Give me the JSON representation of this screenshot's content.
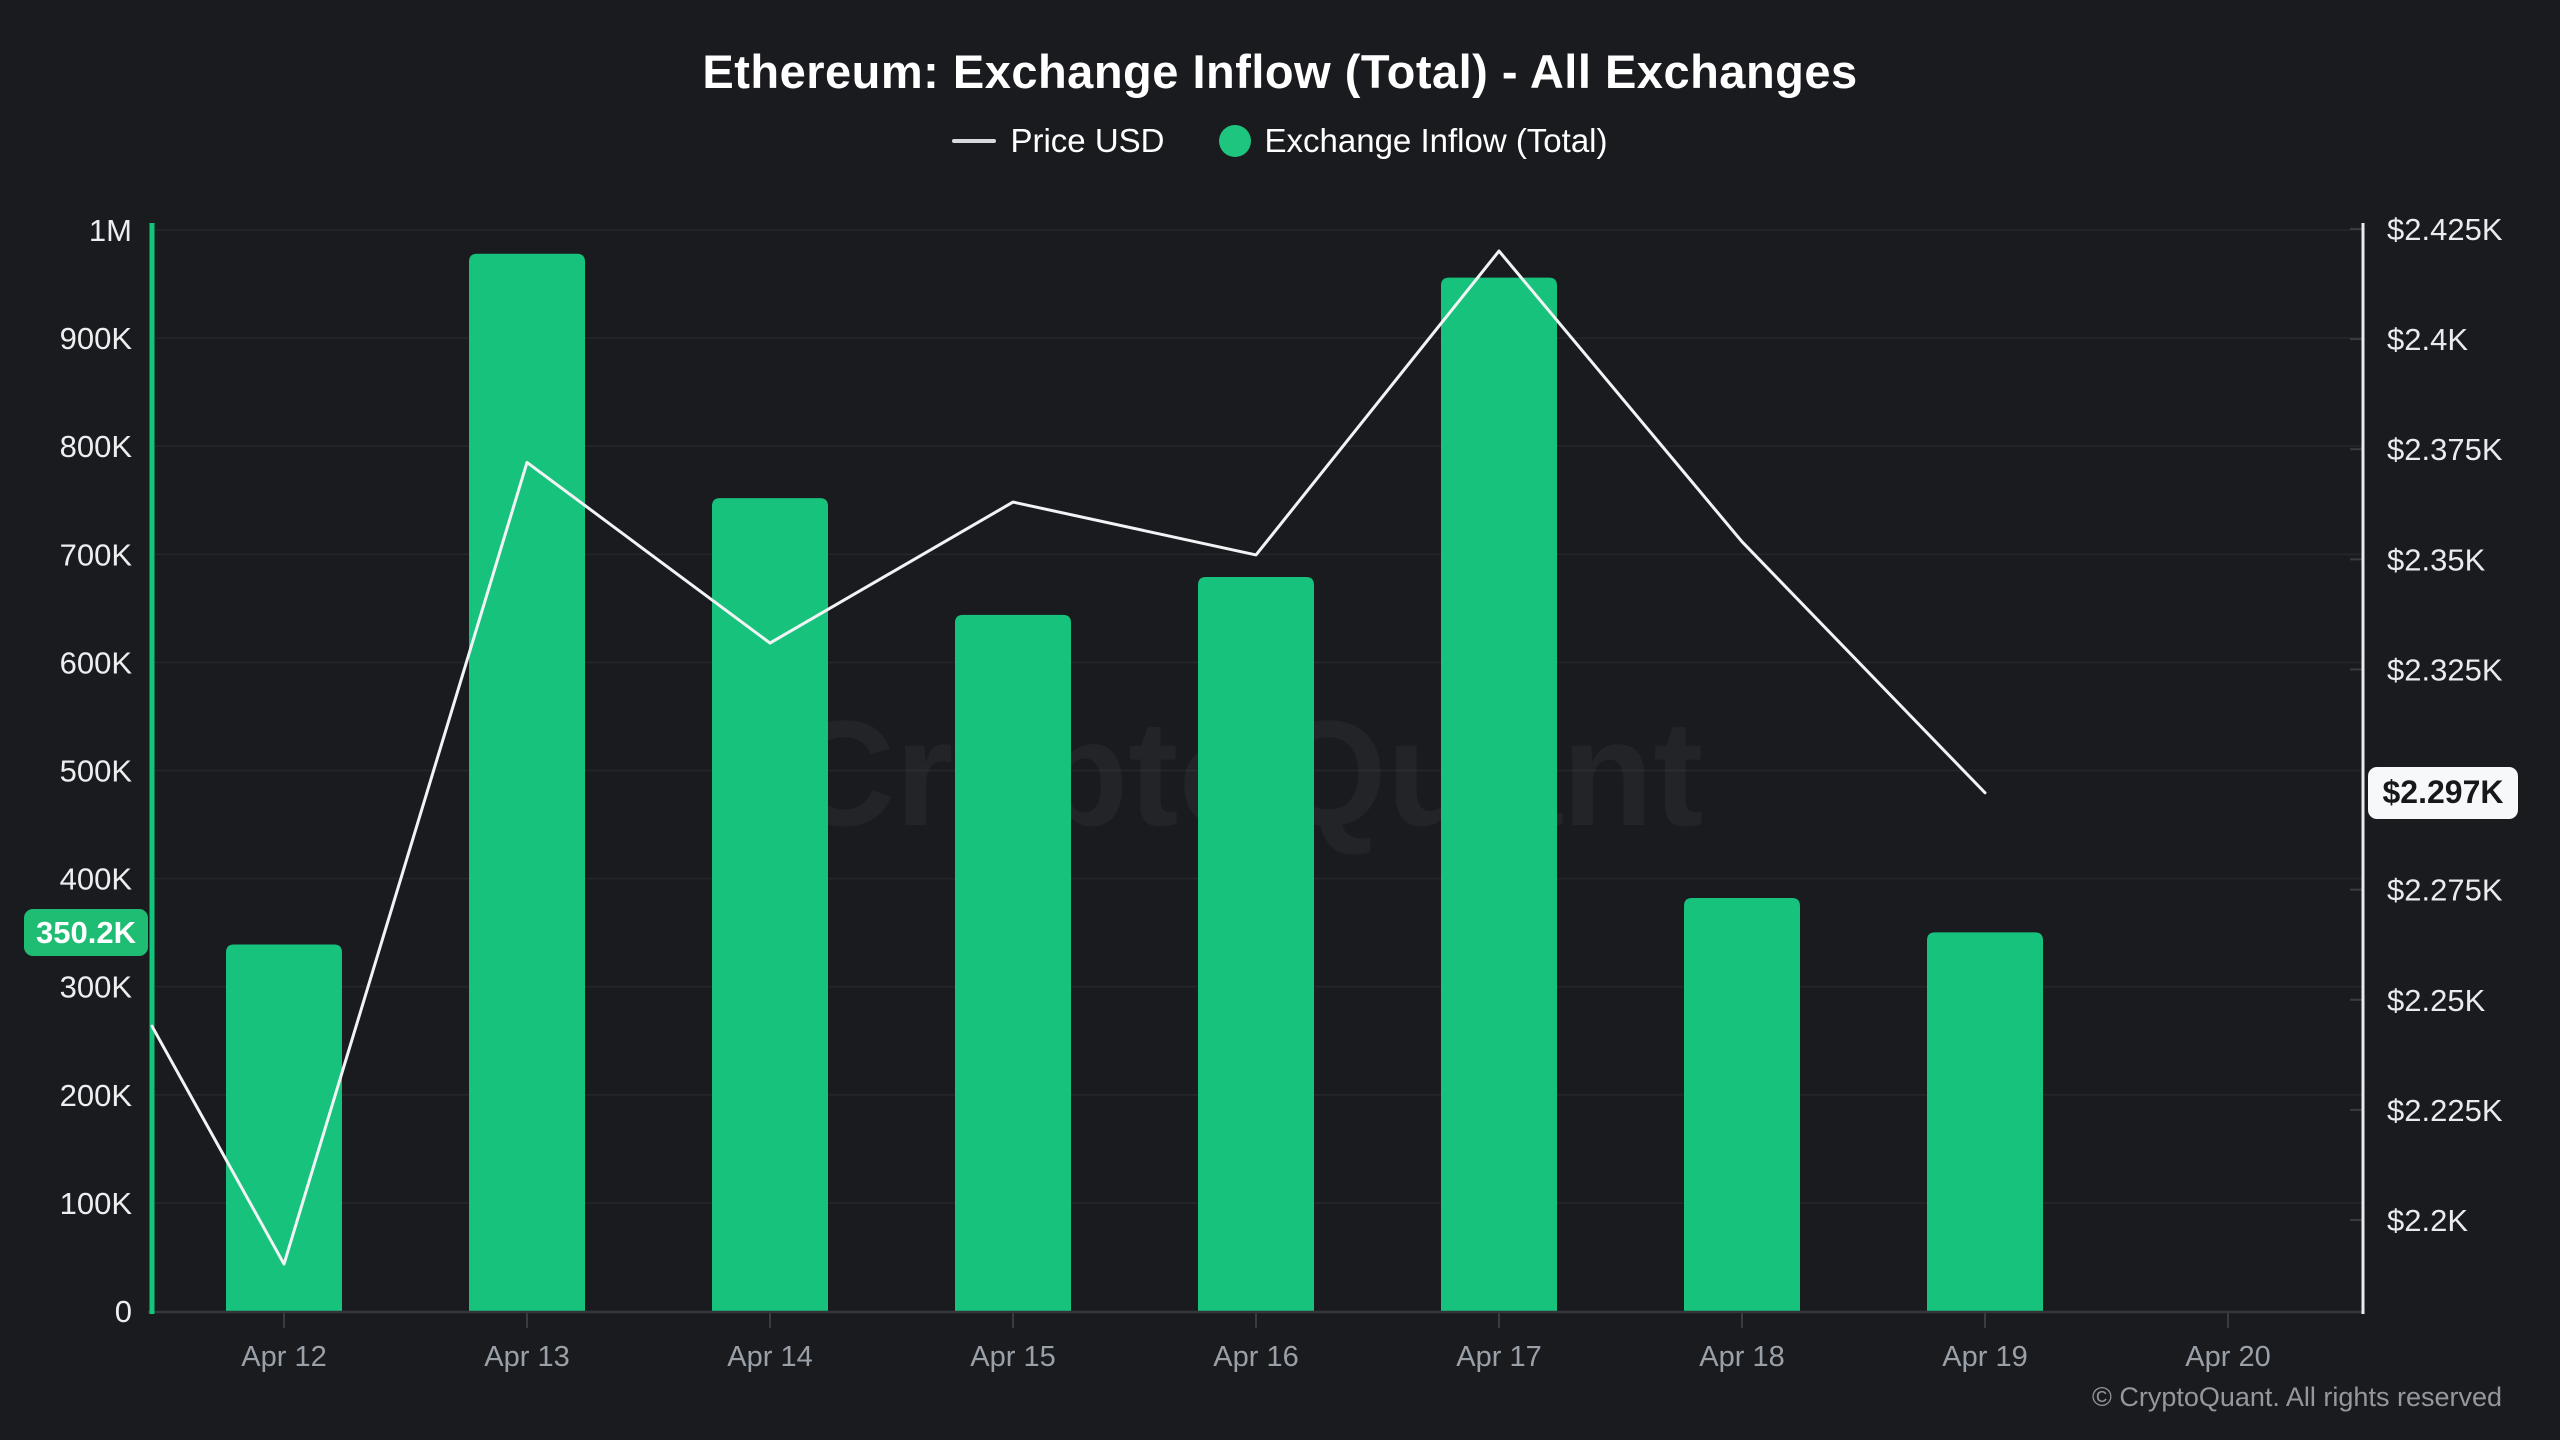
{
  "chart_data": {
    "type": "bar+line",
    "title": "Ethereum: Exchange Inflow (Total) - All Exchanges",
    "watermark": "CryptoQuant",
    "grid": "horizontal-only",
    "legend_position": "top-center",
    "categories": [
      "Apr 12",
      "Apr 13",
      "Apr 14",
      "Apr 15",
      "Apr 16",
      "Apr 17",
      "Apr 18",
      "Apr 19",
      "Apr 20"
    ],
    "series": [
      {
        "name": "Exchange Inflow (Total)",
        "type": "bar",
        "color": "#17c27d",
        "axis": "left",
        "values": [
          339000,
          978000,
          752000,
          644000,
          679000,
          956000,
          382000,
          350200,
          null
        ]
      },
      {
        "name": "Price USD",
        "type": "line",
        "color": "#f2f3f5",
        "axis": "right",
        "points": [
          {
            "pos": -0.55,
            "value": 2244
          },
          {
            "pos": 0,
            "value": 2190
          },
          {
            "pos": 1,
            "value": 2372
          },
          {
            "pos": 2,
            "value": 2331
          },
          {
            "pos": 3,
            "value": 2363
          },
          {
            "pos": 4,
            "value": 2351
          },
          {
            "pos": 5,
            "value": 2420
          },
          {
            "pos": 6,
            "value": 2354
          },
          {
            "pos": 7,
            "value": 2297
          }
        ]
      }
    ],
    "left_axis": {
      "min": 0,
      "max": 1000000,
      "ticks": [
        {
          "label": "0",
          "value": 0
        },
        {
          "label": "100K",
          "value": 100000
        },
        {
          "label": "200K",
          "value": 200000
        },
        {
          "label": "300K",
          "value": 300000
        },
        {
          "label": "400K",
          "value": 400000
        },
        {
          "label": "500K",
          "value": 500000
        },
        {
          "label": "600K",
          "value": 600000
        },
        {
          "label": "700K",
          "value": 700000
        },
        {
          "label": "800K",
          "value": 800000
        },
        {
          "label": "900K",
          "value": 900000
        },
        {
          "label": "1M",
          "value": 1000000
        }
      ],
      "badge": {
        "label": "350.2K",
        "value": 350200,
        "bg": "#1fbd74",
        "text_color": "#ffffff"
      }
    },
    "right_axis": {
      "min_tick": 2200,
      "max_tick": 2425,
      "ticks": [
        {
          "label": "$2.2K",
          "value": 2200
        },
        {
          "label": "$2.225K",
          "value": 2225
        },
        {
          "label": "$2.25K",
          "value": 2250
        },
        {
          "label": "$2.275K",
          "value": 2275
        },
        {
          "label": "$2.325K",
          "value": 2325
        },
        {
          "label": "$2.35K",
          "value": 2350
        },
        {
          "label": "$2.375K",
          "value": 2375
        },
        {
          "label": "$2.4K",
          "value": 2400
        },
        {
          "label": "$2.425K",
          "value": 2425
        }
      ],
      "badge": {
        "label": "$2.297K",
        "value": 2297,
        "bg": "#f7f8f9",
        "text_color": "#17181c"
      }
    }
  },
  "legend": {
    "items": [
      {
        "label": "Price USD",
        "marker": "line",
        "color": "#d8dade"
      },
      {
        "label": "Exchange Inflow (Total)",
        "marker": "dot",
        "color": "#1ec57e"
      }
    ]
  },
  "footer": {
    "copyright": "© CryptoQuant. All rights reserved"
  },
  "colors": {
    "background": "#1a1b1f",
    "grid": "rgba(255,255,255,0.05)",
    "axis_left_line": "#13c57a",
    "axis_right_line": "#e9ebee",
    "tick_line": "#3a3b41",
    "baseline": "#35363c",
    "label_y_left": "#eceef0",
    "label_y_right": "#e9ebee",
    "label_x": "#9aa0a8",
    "watermark": "rgba(255,255,255,0.045)"
  }
}
